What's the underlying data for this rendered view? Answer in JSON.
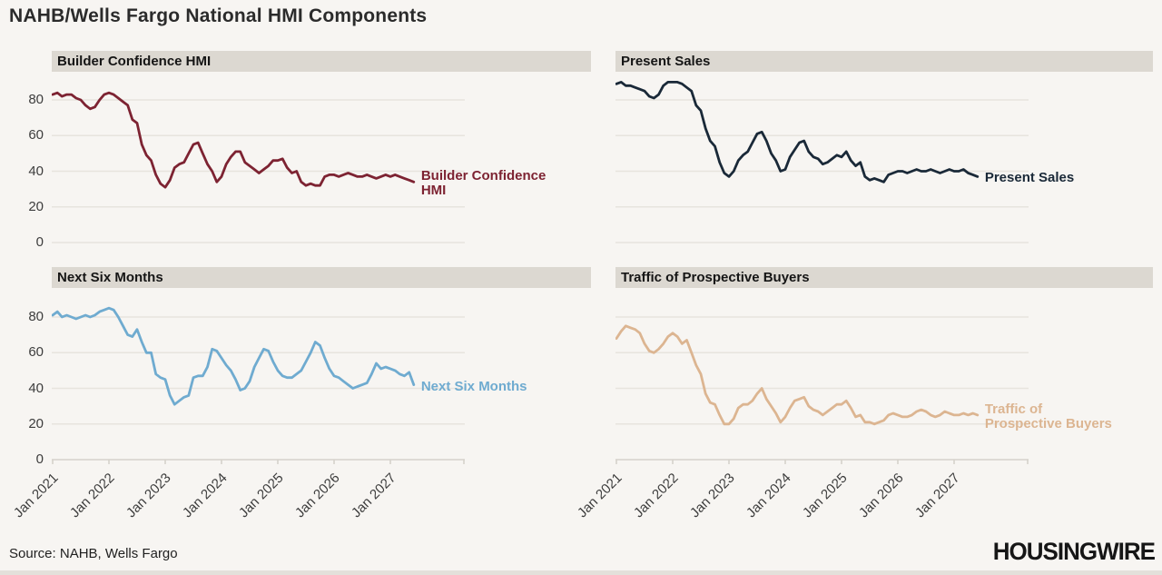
{
  "title": "NAHB/Wells Fargo National HMI Components",
  "source": "Source: NAHB, Wells Fargo",
  "logo": "HOUSINGWIRE",
  "colors": {
    "background": "#f7f5f2",
    "panel_header_bg": "#dcd8d1",
    "grid": "#e7e4de",
    "axis": "#d6d2cb",
    "tick_text": "#3d3d3d",
    "builder_confidence": "#7d2332",
    "present_sales": "#1a2938",
    "next_six_months": "#6fabd0",
    "traffic": "#dcb591"
  },
  "axes": {
    "y_ticks": [
      80,
      60,
      40,
      20,
      0
    ],
    "x_tick_labels": [
      "Jan 2021",
      "Jan 2022",
      "Jan 2023",
      "Jan 2024",
      "Jan 2025",
      "Jan 2026",
      "Jan 2027"
    ]
  },
  "chart_data": [
    {
      "type": "line",
      "position": "top-left",
      "title": "Builder Confidence HMI",
      "series_label_lines": [
        "Builder Confidence",
        "HMI"
      ],
      "color": "#7d2332",
      "x_start": "Jan 2021",
      "frequency": "monthly",
      "ylim": [
        0,
        92
      ],
      "grid": true,
      "values": [
        83,
        84,
        82,
        83,
        83,
        81,
        80,
        77,
        75,
        76,
        80,
        83,
        84,
        83,
        81,
        79,
        77,
        69,
        67,
        55,
        49,
        46,
        38,
        33,
        31,
        35,
        42,
        44,
        45,
        50,
        55,
        56,
        50,
        44,
        40,
        34,
        37,
        44,
        48,
        51,
        51,
        45,
        43,
        41,
        39,
        41,
        43,
        46,
        46,
        47,
        42,
        39,
        40,
        34,
        32,
        33,
        32,
        32,
        37,
        38,
        38,
        37,
        38,
        39,
        38,
        37,
        37,
        38,
        37,
        36,
        37,
        38,
        37,
        38,
        37,
        36,
        35,
        34
      ]
    },
    {
      "type": "line",
      "position": "top-right",
      "title": "Present Sales",
      "series_label_lines": [
        "Present Sales"
      ],
      "color": "#1a2938",
      "x_start": "Jan 2021",
      "frequency": "monthly",
      "ylim": [
        0,
        92
      ],
      "grid": true,
      "values": [
        89,
        90,
        88,
        88,
        87,
        86,
        85,
        82,
        81,
        83,
        88,
        90,
        90,
        90,
        89,
        87,
        85,
        77,
        74,
        64,
        57,
        54,
        45,
        39,
        37,
        40,
        46,
        49,
        51,
        56,
        61,
        62,
        57,
        50,
        46,
        40,
        41,
        48,
        52,
        56,
        57,
        51,
        48,
        47,
        44,
        45,
        47,
        49,
        48,
        51,
        46,
        43,
        45,
        37,
        35,
        36,
        35,
        34,
        38,
        39,
        40,
        40,
        39,
        40,
        41,
        40,
        40,
        41,
        40,
        39,
        40,
        41,
        40,
        40,
        41,
        39,
        38,
        37
      ]
    },
    {
      "type": "line",
      "position": "bottom-left",
      "title": "Next Six Months",
      "series_label_lines": [
        "Next Six Months"
      ],
      "color": "#6fabd0",
      "x_start": "Jan 2021",
      "frequency": "monthly",
      "ylim": [
        0,
        92
      ],
      "grid": true,
      "values": [
        81,
        83,
        80,
        81,
        80,
        79,
        80,
        81,
        80,
        81,
        83,
        84,
        85,
        84,
        80,
        75,
        70,
        69,
        73,
        66,
        60,
        60,
        48,
        46,
        45,
        36,
        31,
        33,
        35,
        36,
        46,
        47,
        47,
        52,
        62,
        61,
        57,
        53,
        50,
        45,
        39,
        40,
        44,
        52,
        57,
        62,
        61,
        55,
        50,
        47,
        46,
        46,
        48,
        50,
        55,
        60,
        66,
        64,
        57,
        51,
        47,
        46,
        44,
        42,
        40,
        41,
        42,
        43,
        48,
        54,
        51,
        52,
        51,
        50,
        48,
        47,
        49,
        42
      ]
    },
    {
      "type": "line",
      "position": "bottom-right",
      "title": "Traffic of Prospective Buyers",
      "series_label_lines": [
        "Traffic of",
        "Prospective Buyers"
      ],
      "color": "#dcb591",
      "x_start": "Jan 2021",
      "frequency": "monthly",
      "ylim": [
        0,
        92
      ],
      "grid": true,
      "values": [
        68,
        72,
        75,
        74,
        73,
        71,
        65,
        61,
        60,
        62,
        65,
        69,
        71,
        69,
        65,
        67,
        60,
        53,
        48,
        37,
        32,
        31,
        25,
        20,
        20,
        23,
        29,
        31,
        31,
        33,
        37,
        40,
        34,
        30,
        26,
        21,
        24,
        29,
        33,
        34,
        35,
        30,
        28,
        27,
        25,
        27,
        29,
        31,
        31,
        33,
        29,
        24,
        25,
        21,
        21,
        20,
        21,
        22,
        25,
        26,
        25,
        24,
        24,
        25,
        27,
        28,
        27,
        25,
        24,
        25,
        27,
        26,
        25,
        25,
        26,
        25,
        26,
        25
      ]
    }
  ]
}
